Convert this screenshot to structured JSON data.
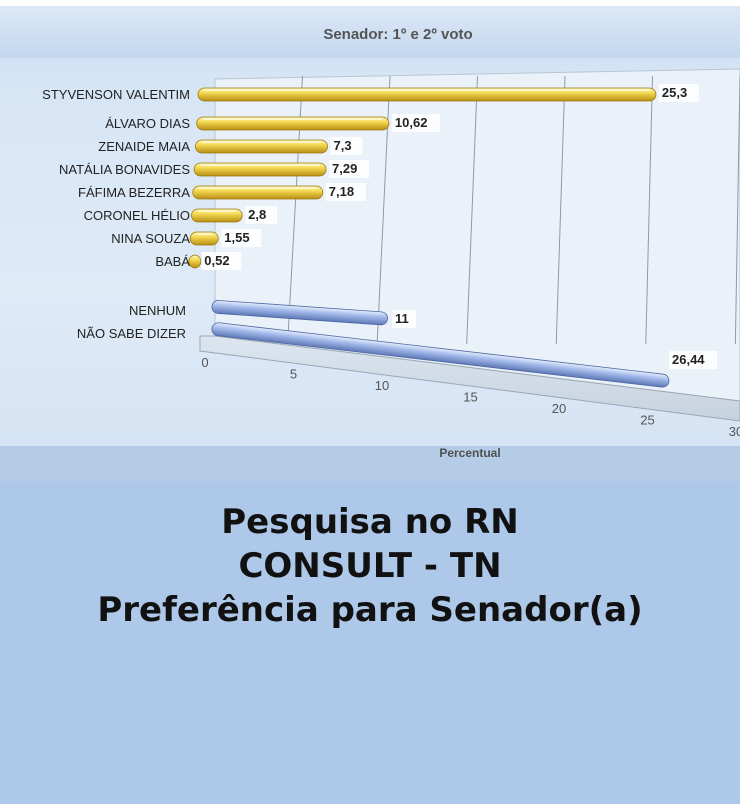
{
  "chart_data": {
    "type": "bar",
    "orientation": "horizontal",
    "title": "Senador: 1º e 2º voto",
    "xlabel": "Percentual",
    "ylabel": "",
    "xlim": [
      0,
      30
    ],
    "x_ticks": [
      "0",
      "5",
      "10",
      "15",
      "20",
      "25",
      "30"
    ],
    "grid": true,
    "series": [
      {
        "color": "#f2d24a",
        "categories": [
          "STYVENSON VALENTIM",
          "ÁLVARO DIAS",
          "ZENAIDE MAIA",
          "NATÁLIA BONAVIDES",
          "FÁFIMA BEZERRA",
          "CORONEL HÉLIO",
          "NINA SOUZA",
          "BABÁ"
        ],
        "values": [
          25.3,
          10.62,
          7.3,
          7.29,
          7.18,
          2.8,
          1.55,
          0.52
        ],
        "value_labels": [
          "25,3",
          "10,62",
          "7,3",
          "7,29",
          "7,18",
          "2,8",
          "1,55",
          "0,52"
        ]
      },
      {
        "color": "#9bb3e6",
        "categories": [
          "NENHUM",
          "NÃO SABE DIZER"
        ],
        "values": [
          11,
          26.44
        ],
        "value_labels": [
          "11",
          "26,44"
        ]
      }
    ]
  },
  "headline": {
    "line1": "Pesquisa no RN",
    "line2": "CONSULT - TN",
    "line3": "Preferência para Senador(a)"
  }
}
